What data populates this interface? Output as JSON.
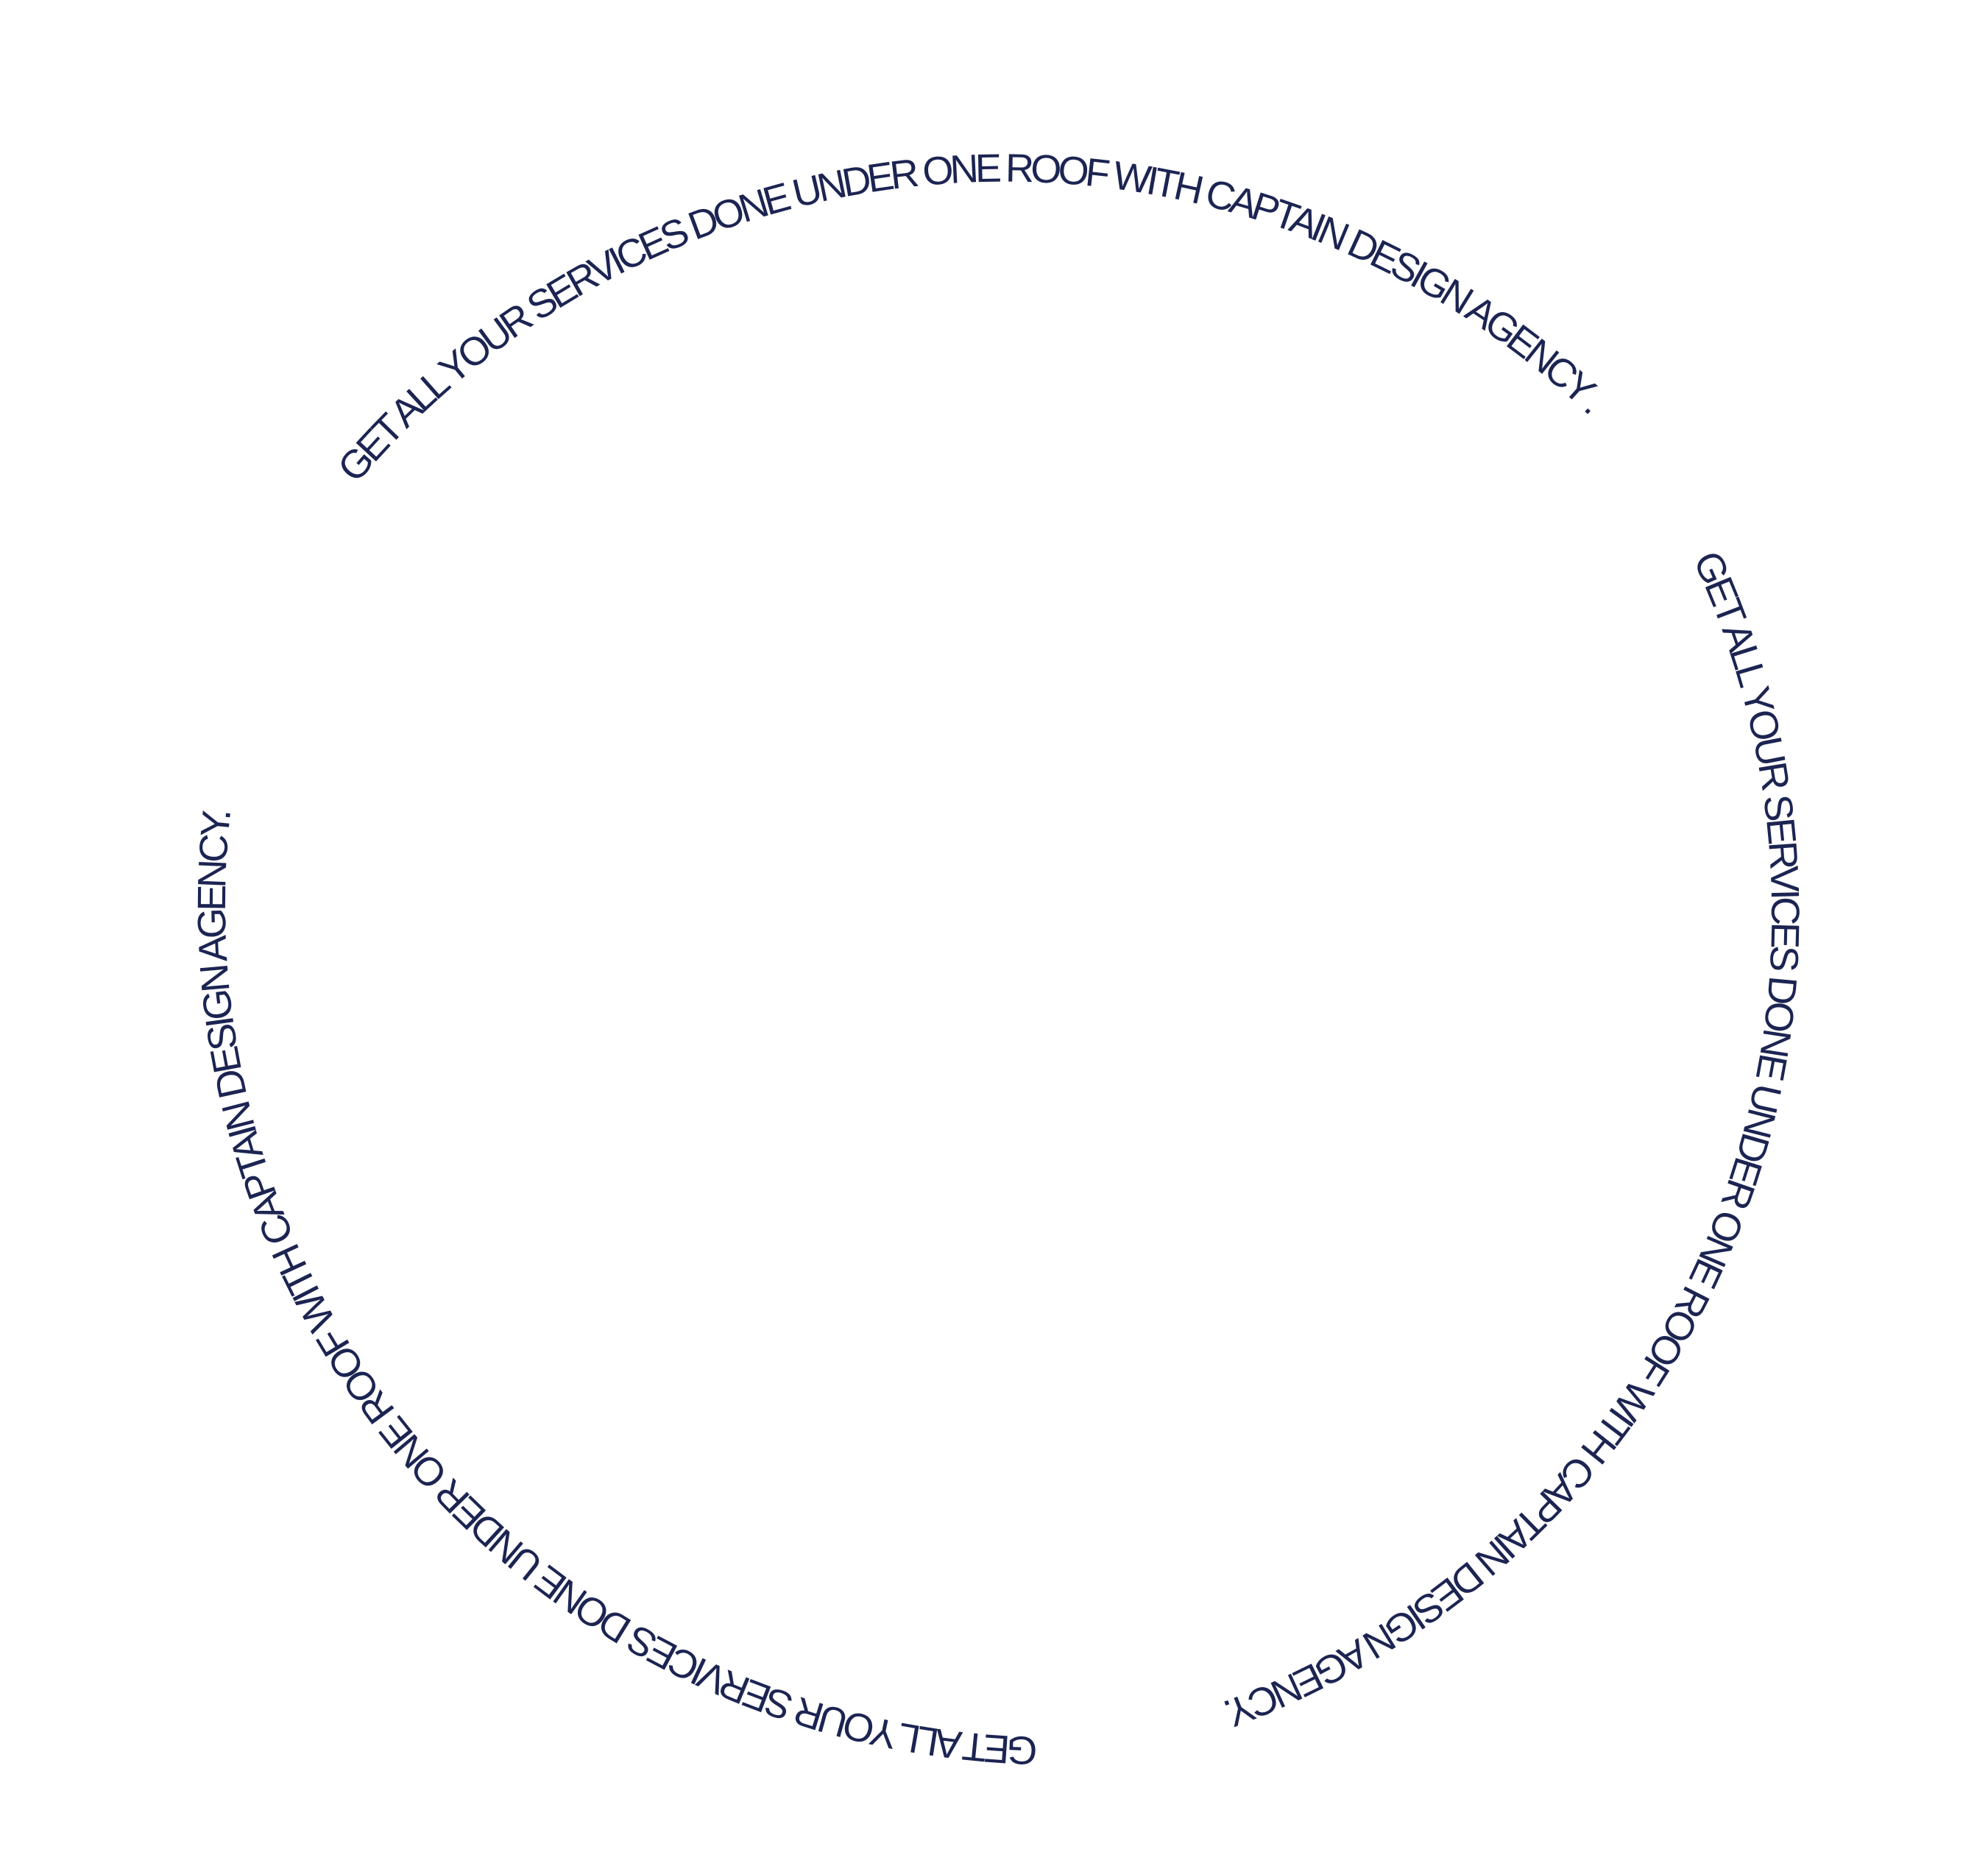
{
  "badge": {
    "text_color": "#1c2452",
    "background": "#ffffff",
    "segments": [
      {
        "text": "GET ALL YOUR SERVICES DONE UNDER ONE ROOF WITH CAPTAIN DESIGN AGENCY ."
      },
      {
        "text": "GET ALL YOUR SERVICES DONE UNDER ONE ROOF WITH CAPTAIN DESIGN AGENCY."
      },
      {
        "text": "GET ALL YOUR SERVICES DONE UNDER ONE ROOF WITH CAPTAIN DESIGN AGENCY."
      }
    ]
  }
}
